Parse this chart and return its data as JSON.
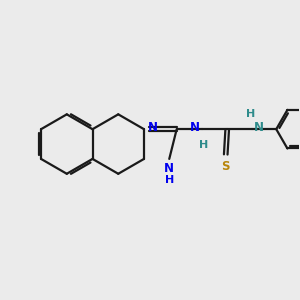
{
  "bg": "#ebebeb",
  "bond_color": "#1a1a1a",
  "N_color": "#0000ee",
  "S_color": "#b8860b",
  "NH_color": "#2e8b8b",
  "lw": 1.6,
  "dbo": 0.055,
  "xlim": [
    0,
    10
  ],
  "ylim": [
    0,
    10
  ]
}
